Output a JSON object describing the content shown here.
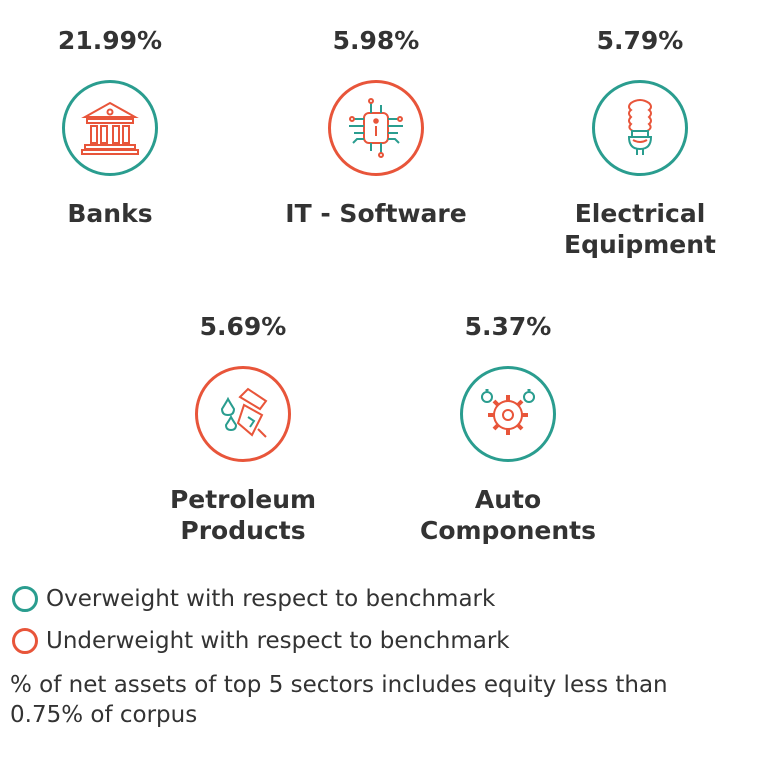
{
  "sectors": [
    {
      "percent": "21.99%",
      "name": "Banks",
      "icon": "bank-icon",
      "status": "overweight"
    },
    {
      "percent": "5.98%",
      "name": "IT - Software",
      "icon": "chip-icon",
      "status": "underweight"
    },
    {
      "percent": "5.79%",
      "name": "Electrical\nEquipment",
      "icon": "light-bulb-icon",
      "status": "overweight"
    },
    {
      "percent": "5.69%",
      "name": "Petroleum\nProducts",
      "icon": "fuel-nozzle-icon",
      "status": "underweight"
    },
    {
      "percent": "5.37%",
      "name": "Auto\nComponents",
      "icon": "gears-icon",
      "status": "overweight"
    }
  ],
  "legend": {
    "overweight": "Overweight with respect to benchmark",
    "underweight": "Underweight with respect to benchmark"
  },
  "footnote": "% of net assets of top 5 sectors includes equity less than 0.75% of corpus",
  "colors": {
    "overweight": "#2a9d8f",
    "underweight": "#e8553a",
    "text": "#333333"
  }
}
